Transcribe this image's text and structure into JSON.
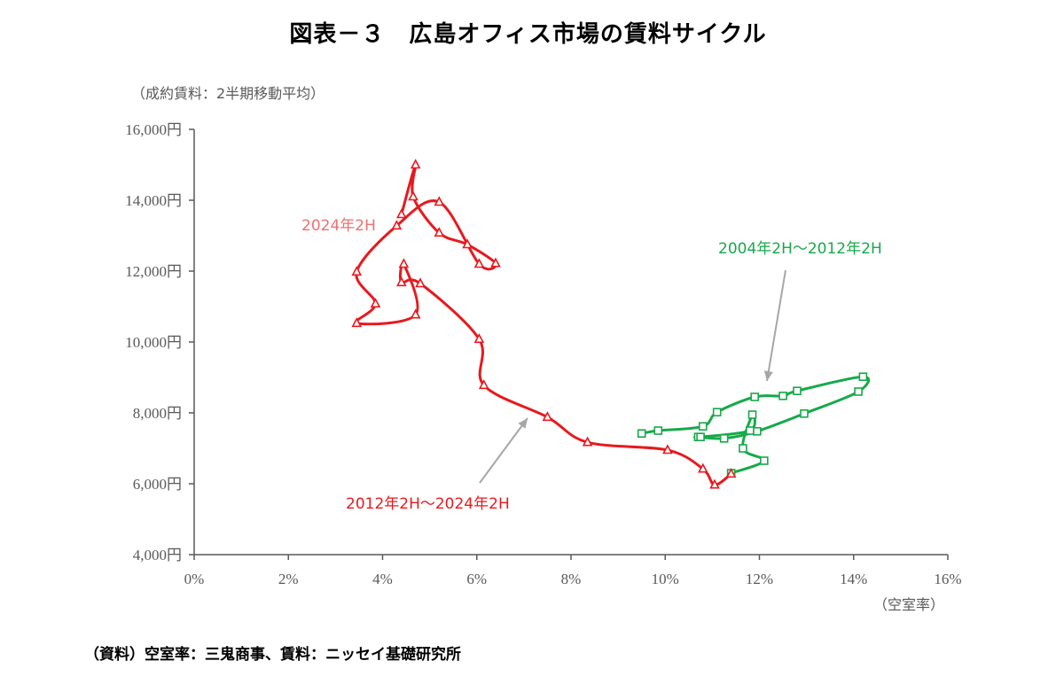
{
  "title": "図表－３　広島オフィス市場の賃料サイクル",
  "source_note": "（資料）空室率：三鬼商事、賃料：ニッセイ基礎研究所",
  "chart_data": {
    "type": "scatter",
    "ylabel": "（成約賃料：2半期移動平均）",
    "xlabel": "（空室率）",
    "xlim": [
      0,
      16
    ],
    "ylim": [
      4000,
      16000
    ],
    "x_ticks": [
      "0%",
      "2%",
      "4%",
      "6%",
      "8%",
      "10%",
      "12%",
      "14%",
      "16%"
    ],
    "y_ticks": [
      "4,000円",
      "6,000円",
      "8,000円",
      "10,000円",
      "12,000円",
      "14,000円",
      "16,000円"
    ],
    "series": [
      {
        "color": "#17A94A",
        "marker": "square",
        "points": [
          [
            9.5,
            7420
          ],
          [
            9.85,
            7500
          ],
          [
            10.8,
            7620
          ],
          [
            11.1,
            8020
          ],
          [
            11.9,
            8450
          ],
          [
            12.5,
            8480
          ],
          [
            12.8,
            8620
          ],
          [
            14.2,
            9020
          ],
          [
            14.1,
            8600
          ],
          [
            12.95,
            7980
          ],
          [
            11.95,
            7480
          ],
          [
            11.25,
            7280
          ],
          [
            10.7,
            7320
          ],
          [
            10.75,
            7320
          ],
          [
            11.8,
            7500
          ],
          [
            11.85,
            7950
          ],
          [
            11.65,
            7000
          ],
          [
            12.1,
            6650
          ],
          [
            11.4,
            6300
          ]
        ]
      },
      {
        "color": "#E8191E",
        "marker": "triangle",
        "points": [
          [
            11.4,
            6280
          ],
          [
            11.05,
            5970
          ],
          [
            10.8,
            6420
          ],
          [
            10.05,
            6950
          ],
          [
            8.35,
            7170
          ],
          [
            7.5,
            7880
          ],
          [
            6.15,
            8780
          ],
          [
            6.05,
            10080
          ],
          [
            4.8,
            11650
          ],
          [
            4.4,
            11680
          ],
          [
            4.45,
            12200
          ],
          [
            4.7,
            10770
          ],
          [
            3.45,
            10530
          ],
          [
            3.85,
            11080
          ],
          [
            3.45,
            11980
          ],
          [
            4.3,
            13280
          ],
          [
            5.2,
            13950
          ],
          [
            6.05,
            12200
          ],
          [
            6.4,
            12220
          ],
          [
            5.8,
            12750
          ],
          [
            5.2,
            13080
          ],
          [
            4.65,
            14100
          ],
          [
            4.7,
            15000
          ],
          [
            4.4,
            13600
          ]
        ]
      }
    ],
    "annotations": [
      {
        "text": "2024年2H",
        "color": "#F07070"
      },
      {
        "text": "2004年2H～2012年2H",
        "color": "#17A94A"
      },
      {
        "text": "2012年2H～2024年2H",
        "color": "#E8191E"
      }
    ]
  }
}
